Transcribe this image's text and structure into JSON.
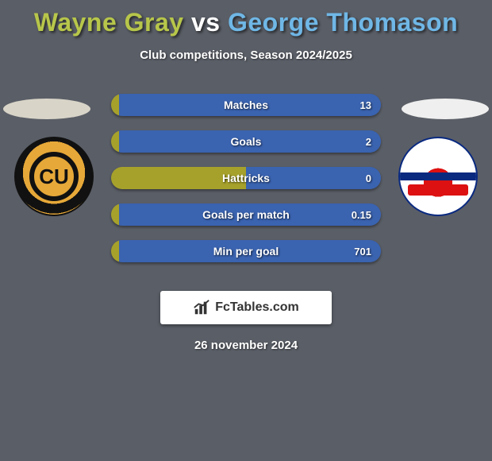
{
  "title": {
    "player1": "Wayne Gray",
    "player2": "George Thomason",
    "color1": "#b7c64a",
    "color2": "#6fb7e6",
    "vs_color": "#ffffff"
  },
  "subtitle": "Club competitions, Season 2024/2025",
  "left_club_abbr": "CU",
  "bars": {
    "left_color": "#a6a12b",
    "right_color": "#3a63b0",
    "rows": [
      {
        "label": "Matches",
        "left_val": "",
        "right_val": "13",
        "left_pct": 3,
        "right_pct": 97
      },
      {
        "label": "Goals",
        "left_val": "",
        "right_val": "2",
        "left_pct": 3,
        "right_pct": 97
      },
      {
        "label": "Hattricks",
        "left_val": "",
        "right_val": "0",
        "left_pct": 50,
        "right_pct": 50
      },
      {
        "label": "Goals per match",
        "left_val": "",
        "right_val": "0.15",
        "left_pct": 3,
        "right_pct": 97
      },
      {
        "label": "Min per goal",
        "left_val": "",
        "right_val": "701",
        "left_pct": 3,
        "right_pct": 97
      }
    ]
  },
  "footer": {
    "brand": "FcTables.com",
    "date": "26 november 2024"
  },
  "colors": {
    "background": "#5a5e66"
  }
}
